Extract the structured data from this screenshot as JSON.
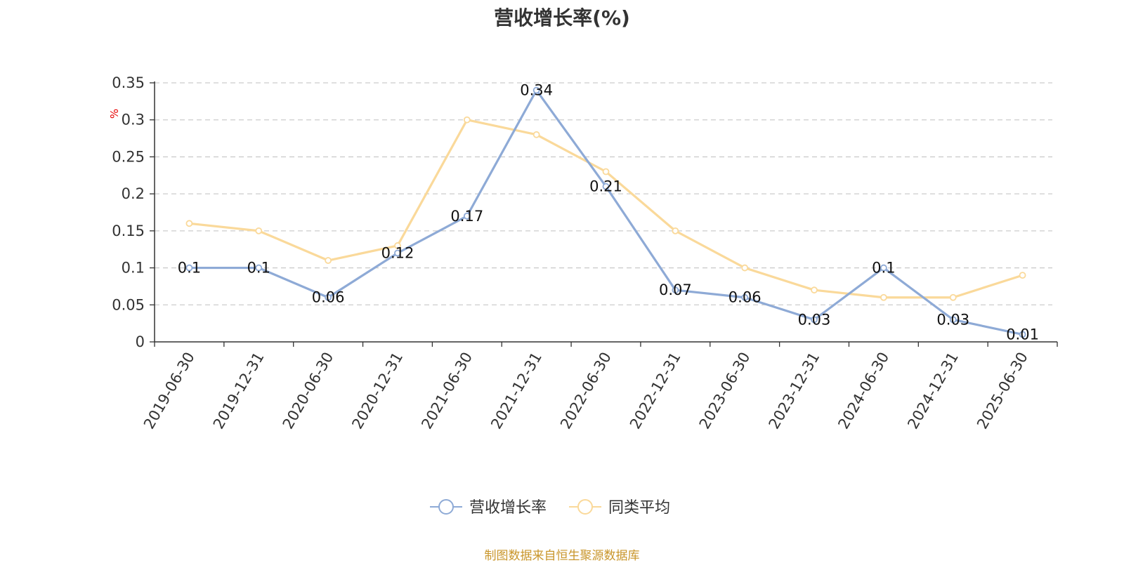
{
  "chart_data": {
    "type": "line",
    "title": "营收增长率(%)",
    "ylabel": "%",
    "categories": [
      "2019-06-30",
      "2019-12-31",
      "2020-06-30",
      "2020-12-31",
      "2021-06-30",
      "2021-12-31",
      "2022-06-30",
      "2022-12-31",
      "2023-06-30",
      "2023-12-31",
      "2024-06-30",
      "2024-12-31",
      "2025-06-30"
    ],
    "yticks": [
      "0",
      "0.05",
      "0.1",
      "0.15",
      "0.2",
      "0.25",
      "0.3",
      "0.35"
    ],
    "ylim": [
      0,
      0.35
    ],
    "grid": true,
    "legend_position": "bottom-center",
    "series": [
      {
        "name": "营收增长率",
        "color": "#8eaad6",
        "values": [
          0.1,
          0.1,
          0.06,
          0.12,
          0.17,
          0.34,
          0.21,
          0.07,
          0.06,
          0.03,
          0.1,
          0.03,
          0.01
        ],
        "data_labels": [
          "0.1",
          "0.1",
          "0.06",
          "0.12",
          "0.17",
          "0.34",
          "0.21",
          "0.07",
          "0.06",
          "0.03",
          "0.1",
          "0.03",
          "0.01"
        ]
      },
      {
        "name": "同类平均",
        "color": "#fad99a",
        "values": [
          0.16,
          0.15,
          0.11,
          0.13,
          0.3,
          0.28,
          0.23,
          0.15,
          0.1,
          0.07,
          0.06,
          0.06,
          0.09
        ]
      }
    ]
  },
  "source_note": "制图数据来自恒生聚源数据库"
}
